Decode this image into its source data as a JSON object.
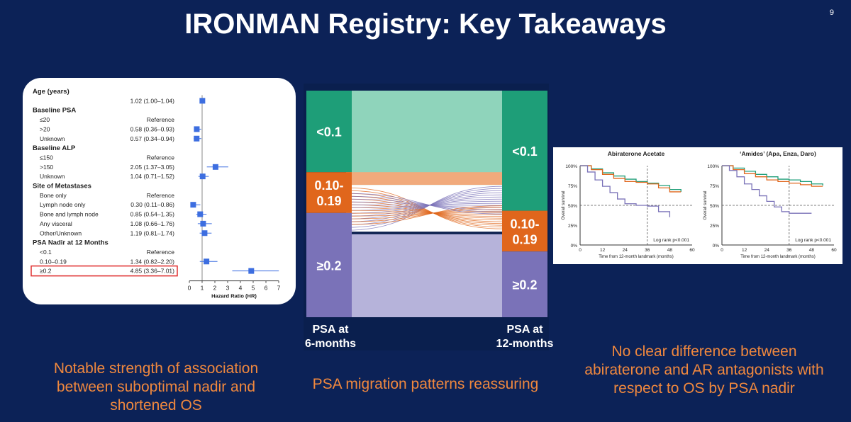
{
  "slide": {
    "title": "IRONMAN Registry: Key Takeaways",
    "page_number": "9",
    "captions": {
      "left": "Notable strength of association between suboptimal nadir and shortened OS",
      "middle": "PSA migration patterns reassuring",
      "right": "No clear difference between abiraterone and AR antagonists with respect to OS by PSA nadir"
    }
  },
  "colors": {
    "background": "#0c2257",
    "marker": "#3d6ee0",
    "highlight": "#e03030",
    "caption": "#f0883e",
    "green": "#1e9e78",
    "orange": "#e0661c",
    "purple": "#7a72b8"
  },
  "chart_data": [
    {
      "type": "forest",
      "xlabel": "Hazard Ratio (HR)",
      "xlim": [
        0,
        7
      ],
      "xticks": [
        "0",
        "1",
        "2",
        "3",
        "4",
        "5",
        "6",
        "7"
      ],
      "reference_line": 1,
      "rows": [
        {
          "label": "Age (years)",
          "header": true
        },
        {
          "label": "",
          "text": "1.02 (1.00–1.04)",
          "hr": 1.02,
          "lo": 1.0,
          "hi": 1.04
        },
        {
          "label": "Baseline PSA",
          "header": true
        },
        {
          "label": "≤20",
          "text": "Reference"
        },
        {
          "label": ">20",
          "text": "0.58 (0.36–0.93)",
          "hr": 0.58,
          "lo": 0.36,
          "hi": 0.93
        },
        {
          "label": "Unknown",
          "text": "0.57 (0.34–0.94)",
          "hr": 0.57,
          "lo": 0.34,
          "hi": 0.94
        },
        {
          "label": "Baseline ALP",
          "header": true
        },
        {
          "label": "≤150",
          "text": "Reference"
        },
        {
          "label": ">150",
          "text": "2.05 (1.37–3.05)",
          "hr": 2.05,
          "lo": 1.37,
          "hi": 3.05
        },
        {
          "label": "Unknown",
          "text": "1.04 (0.71–1.52)",
          "hr": 1.04,
          "lo": 0.71,
          "hi": 1.52
        },
        {
          "label": "Site of Metastases",
          "header": true
        },
        {
          "label": "Bone only",
          "text": "Reference"
        },
        {
          "label": "Lymph node only",
          "text": "0.30 (0.11–0.86)",
          "hr": 0.3,
          "lo": 0.11,
          "hi": 0.86
        },
        {
          "label": "Bone and lymph node",
          "text": "0.85 (0.54–1.35)",
          "hr": 0.85,
          "lo": 0.54,
          "hi": 1.35
        },
        {
          "label": "Any visceral",
          "text": "1.08 (0.66–1.76)",
          "hr": 1.08,
          "lo": 0.66,
          "hi": 1.76
        },
        {
          "label": "Other/Unknown",
          "text": "1.19 (0.81–1.74)",
          "hr": 1.19,
          "lo": 0.81,
          "hi": 1.74
        },
        {
          "label": "PSA Nadir at 12 Months",
          "header": true
        },
        {
          "label": "<0.1",
          "text": "Reference"
        },
        {
          "label": "0.10–0.19",
          "text": "1.34 (0.82–2.20)",
          "hr": 1.34,
          "lo": 0.82,
          "hi": 2.2
        },
        {
          "label": "≥0.2",
          "text": "4.85 (3.36–7.01)",
          "hr": 4.85,
          "lo": 3.36,
          "hi": 7.01,
          "highlight": true
        }
      ]
    },
    {
      "type": "sankey",
      "left_label": "PSA at 6-months",
      "right_label": "PSA at 12-months",
      "left_nodes": [
        {
          "label": "<0.1",
          "fraction": 0.36,
          "color": "#1e9e78"
        },
        {
          "label": "0.10-0.19",
          "fraction": 0.18,
          "color": "#e0661c"
        },
        {
          "label": "≥0.2",
          "fraction": 0.46,
          "color": "#7a72b8"
        }
      ],
      "right_nodes": [
        {
          "label": "<0.1",
          "fraction": 0.53,
          "color": "#1e9e78"
        },
        {
          "label": "0.10-0.19",
          "fraction": 0.18,
          "color": "#e0661c"
        },
        {
          "label": "≥0.2",
          "fraction": 0.29,
          "color": "#7a72b8"
        }
      ]
    },
    {
      "type": "line",
      "title": "Abiraterone Acetate",
      "xlabel": "Time from 12-month landmark (months)",
      "ylabel": "Overall survival",
      "xlim": [
        0,
        60
      ],
      "ylim": [
        0,
        100
      ],
      "xticks": [
        "0",
        "12",
        "24",
        "36",
        "48",
        "60"
      ],
      "yticks": [
        "0%",
        "25%",
        "50%",
        "75%",
        "100%"
      ],
      "annotation": "Log rank p<0.001",
      "landmark_x": 36,
      "series": [
        {
          "color": "#1e9e78",
          "x": [
            0,
            6,
            12,
            18,
            24,
            30,
            36,
            42,
            48,
            54
          ],
          "y": [
            100,
            96,
            91,
            87,
            83,
            80,
            78,
            75,
            70,
            67
          ]
        },
        {
          "color": "#e0661c",
          "x": [
            0,
            6,
            12,
            18,
            24,
            30,
            36,
            42,
            48,
            54
          ],
          "y": [
            100,
            95,
            89,
            84,
            80,
            79,
            77,
            72,
            67,
            67
          ]
        },
        {
          "color": "#7a72b8",
          "x": [
            0,
            4,
            8,
            12,
            16,
            20,
            24,
            30,
            36,
            42,
            48
          ],
          "y": [
            100,
            92,
            82,
            74,
            66,
            58,
            52,
            50,
            49,
            42,
            35
          ]
        }
      ]
    },
    {
      "type": "line",
      "title": "‘Amides’ (Apa, Enza, Daro)",
      "xlabel": "Time from 12-month landmark (months)",
      "ylabel": "Overall survival",
      "xlim": [
        0,
        60
      ],
      "ylim": [
        0,
        100
      ],
      "xticks": [
        "0",
        "12",
        "24",
        "36",
        "48",
        "60"
      ],
      "yticks": [
        "0%",
        "25%",
        "50%",
        "75%",
        "100%"
      ],
      "annotation": "Log rank p<0.001",
      "landmark_x": 36,
      "series": [
        {
          "color": "#1e9e78",
          "x": [
            0,
            6,
            12,
            18,
            24,
            30,
            36,
            42,
            48,
            54
          ],
          "y": [
            100,
            97,
            93,
            89,
            86,
            83,
            82,
            80,
            77,
            75
          ]
        },
        {
          "color": "#e0661c",
          "x": [
            0,
            6,
            12,
            18,
            24,
            30,
            36,
            42,
            48,
            54
          ],
          "y": [
            100,
            95,
            90,
            86,
            82,
            80,
            78,
            76,
            74,
            74
          ]
        },
        {
          "color": "#7a72b8",
          "x": [
            0,
            4,
            8,
            12,
            16,
            20,
            24,
            28,
            32,
            36,
            42,
            48
          ],
          "y": [
            100,
            94,
            86,
            77,
            70,
            62,
            55,
            48,
            42,
            40,
            40,
            40
          ]
        }
      ]
    }
  ]
}
